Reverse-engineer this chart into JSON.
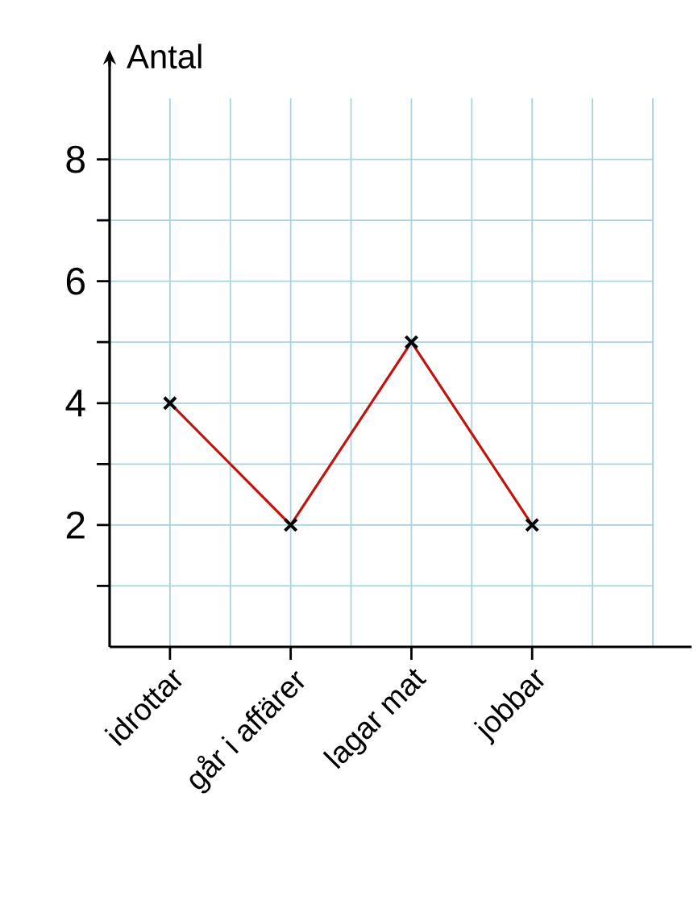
{
  "chart_data": {
    "type": "line",
    "ylabel": "Antal",
    "categories": [
      "idrottar",
      "går i affärer",
      "lagar mat",
      "jobbar"
    ],
    "values": [
      4,
      2,
      5,
      2
    ],
    "color": "#c0150f",
    "marker": "cross",
    "line_style": "solid",
    "grid": true,
    "ylim": [
      0,
      9
    ],
    "yticks": [
      {
        "value": 1,
        "label": null
      },
      2,
      {
        "value": 3,
        "label": null
      },
      4,
      {
        "value": 5,
        "label": null
      },
      6,
      {
        "value": 7,
        "label": null
      },
      8
    ]
  }
}
